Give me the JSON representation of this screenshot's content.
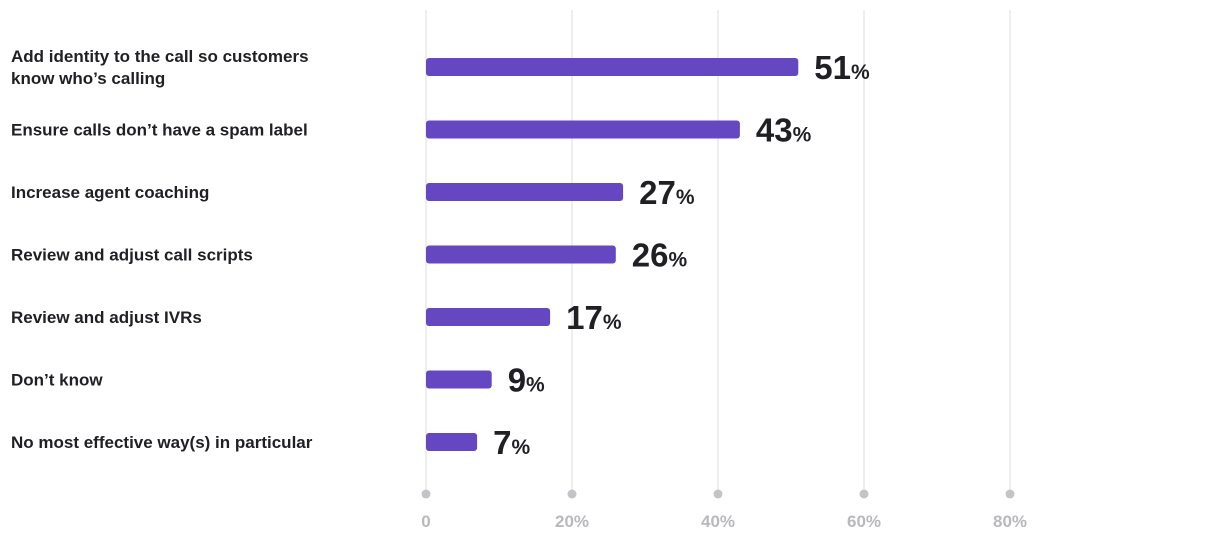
{
  "chart_data": {
    "type": "bar",
    "orientation": "horizontal",
    "categories": [
      [
        "Add identity to the call so customers",
        "know who’s calling"
      ],
      [
        "Ensure calls don’t have a spam label"
      ],
      [
        "Increase agent coaching"
      ],
      [
        "Review and adjust call scripts"
      ],
      [
        "Review and adjust IVRs"
      ],
      [
        "Don’t know"
      ],
      [
        "No most effective way(s) in particular"
      ]
    ],
    "values": [
      51,
      43,
      27,
      26,
      17,
      9,
      7
    ],
    "value_suffix": "%",
    "xlim": [
      0,
      100
    ],
    "x_ticks": [
      0,
      20,
      40,
      60,
      80
    ],
    "x_tick_labels": [
      "0",
      "20%",
      "40%",
      "60%",
      "80%"
    ],
    "grid": "vertical",
    "legend": "none",
    "colors": {
      "bar": "#6547c1",
      "label": "#1f1f24",
      "gridline": "#dcdcdf",
      "axis": "#c4c4c8",
      "tick_dot": "#c4c4c8",
      "tick_label": "#b9b9bd"
    }
  }
}
